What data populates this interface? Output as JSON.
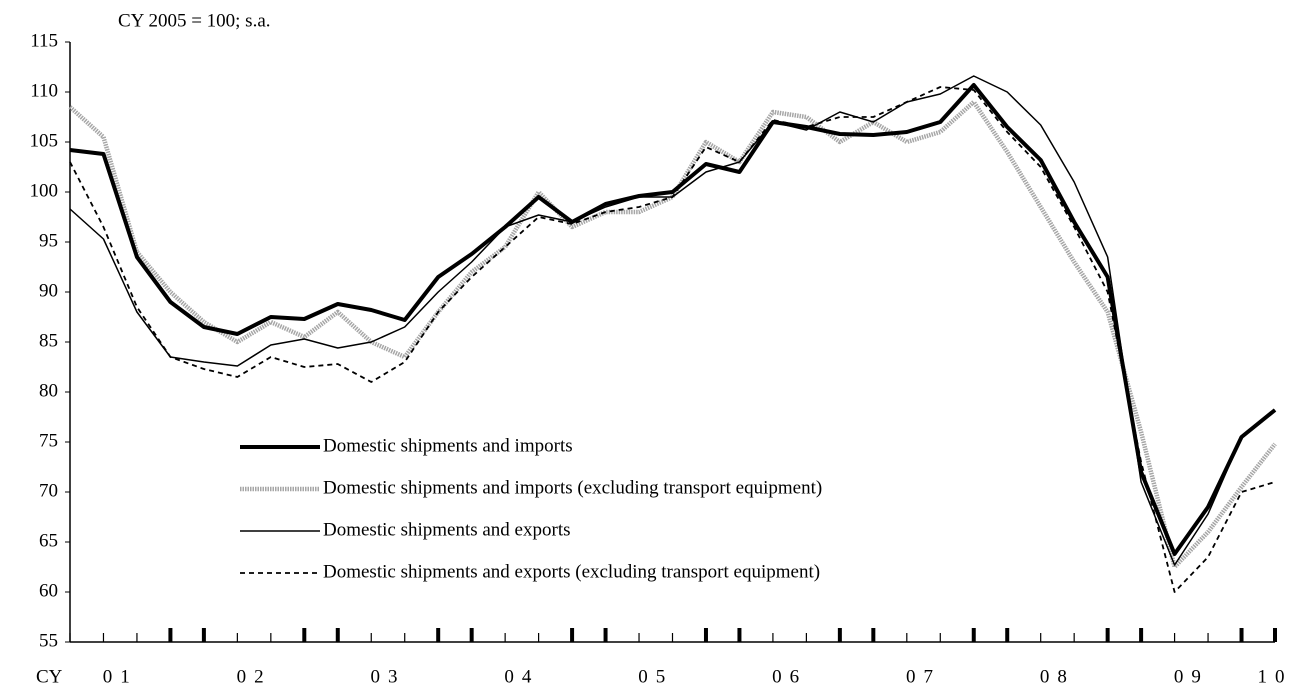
{
  "chart_data": {
    "type": "line",
    "subtitle": "CY 2005 = 100; s.a.",
    "xlabel": "CY",
    "categories": [
      null,
      "01",
      null,
      null,
      null,
      "02",
      null,
      null,
      null,
      "03",
      null,
      null,
      null,
      "04",
      null,
      null,
      null,
      "05",
      null,
      null,
      null,
      "06",
      null,
      null,
      null,
      "07",
      null,
      null,
      null,
      "08",
      null,
      null,
      null,
      "09",
      null,
      null,
      "10"
    ],
    "ylim": [
      55,
      115
    ],
    "yticks": [
      55,
      60,
      65,
      70,
      75,
      80,
      85,
      90,
      95,
      100,
      105,
      110,
      115
    ],
    "grid": false,
    "legend": "lower-left",
    "series": [
      {
        "name": "Domestic shipments and imports",
        "color": "#000000",
        "style": "thick",
        "values": [
          104.2,
          103.8,
          93.5,
          89,
          86.5,
          85.8,
          87.5,
          87.3,
          88.8,
          88.2,
          87.2,
          91.5,
          93.8,
          96.5,
          99.5,
          97,
          98.8,
          99.6,
          100,
          102.8,
          102,
          107,
          106.5,
          105.8,
          105.7,
          106,
          107,
          110.7,
          106.5,
          103.2,
          97,
          91.5,
          72,
          63.8,
          68.5,
          75.5,
          78.2
        ]
      },
      {
        "name": "Domestic shipments and imports (excluding transport equipment)",
        "color": "#a6a6a6",
        "style": "gray",
        "values": [
          108.5,
          105.5,
          94,
          90,
          87,
          85,
          87,
          85.5,
          88,
          85,
          83.5,
          88,
          92,
          94.5,
          100,
          96.5,
          98,
          98,
          99.5,
          105,
          103,
          108,
          107.5,
          105,
          107,
          105,
          106,
          109,
          104,
          98.5,
          93,
          88,
          76,
          62.5,
          66,
          70.5,
          74.8
        ]
      },
      {
        "name": "Domestic shipments and exports",
        "color": "#000000",
        "style": "thin",
        "values": [
          98.3,
          95.3,
          88,
          83.5,
          83,
          82.6,
          84.7,
          85.3,
          84.4,
          85,
          86.5,
          90,
          93,
          96.5,
          97.7,
          97,
          98.5,
          99.5,
          99.5,
          102,
          103,
          107,
          106.2,
          108,
          107,
          109,
          109.8,
          111.6,
          110,
          106.7,
          101,
          93.5,
          71,
          62.7,
          67.8,
          75.5,
          78.2
        ]
      },
      {
        "name": "Domestic shipments and exports (excluding transport equipment)",
        "color": "#000000",
        "style": "dotted",
        "values": [
          103,
          96.5,
          88.5,
          83.5,
          82.3,
          81.5,
          83.5,
          82.5,
          82.8,
          81,
          83,
          88,
          91.5,
          94.5,
          97.5,
          96.8,
          98,
          98.5,
          99.5,
          104.5,
          103,
          107.2,
          106.5,
          107.5,
          107.5,
          109,
          110.5,
          110.2,
          106,
          102.5,
          96.5,
          90,
          73,
          60,
          63.5,
          70,
          71
        ]
      }
    ]
  }
}
